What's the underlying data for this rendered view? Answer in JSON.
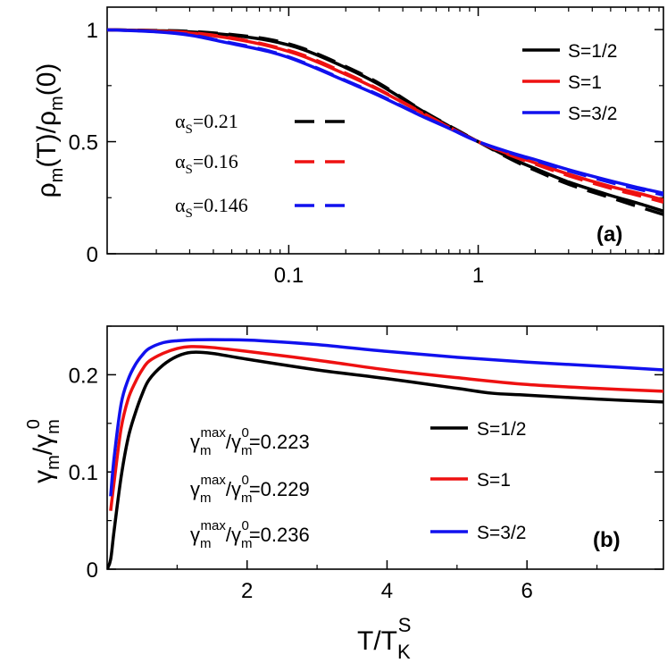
{
  "chart_data": [
    {
      "type": "line",
      "panel_label": "(a)",
      "xscale": "log",
      "xlim": [
        0.011,
        9.5
      ],
      "ylim": [
        0,
        1.1
      ],
      "xticks": [
        {
          "value": 0.1,
          "label": "0.1"
        },
        {
          "value": 1,
          "label": "1"
        }
      ],
      "yticks": [
        {
          "value": 0,
          "label": "0"
        },
        {
          "value": 0.5,
          "label": "0.5"
        },
        {
          "value": 1,
          "label": "1"
        }
      ],
      "ylabel": {
        "main": "ρ",
        "sub1": "m",
        "mid": "(T)/ρ",
        "sub2": "m",
        "end": "(0)"
      },
      "legend_solid": [
        {
          "label": "S=1/2",
          "color": "#000000"
        },
        {
          "label": "S=1",
          "color": "#ee1111"
        },
        {
          "label": "S=3/2",
          "color": "#1111ee"
        }
      ],
      "legend_dashed": [
        {
          "greek": "α",
          "sub": "S",
          "value": "=0.21",
          "color": "#000000"
        },
        {
          "greek": "α",
          "sub": "S",
          "value": "=0.16",
          "color": "#ee1111"
        },
        {
          "greek": "α",
          "sub": "S",
          "value": "=0.146",
          "color": "#1111ee"
        }
      ],
      "series": [
        {
          "name": "S=1/2",
          "style": "solid",
          "color": "#000000",
          "x": [
            0.011,
            0.02,
            0.03,
            0.05,
            0.08,
            0.12,
            0.2,
            0.3,
            0.5,
            0.7,
            1.0,
            1.5,
            2,
            3,
            5,
            7,
            9.5
          ],
          "y": [
            0.999,
            0.995,
            0.99,
            0.975,
            0.95,
            0.91,
            0.83,
            0.755,
            0.64,
            0.57,
            0.5,
            0.425,
            0.38,
            0.32,
            0.26,
            0.225,
            0.19
          ]
        },
        {
          "name": "S=1",
          "style": "solid",
          "color": "#ee1111",
          "x": [
            0.011,
            0.02,
            0.03,
            0.05,
            0.08,
            0.12,
            0.2,
            0.3,
            0.5,
            0.7,
            1.0,
            1.5,
            2,
            3,
            5,
            7,
            9.5
          ],
          "y": [
            0.999,
            0.993,
            0.985,
            0.96,
            0.925,
            0.88,
            0.8,
            0.73,
            0.63,
            0.565,
            0.5,
            0.44,
            0.405,
            0.355,
            0.3,
            0.27,
            0.24
          ]
        },
        {
          "name": "S=3/2",
          "style": "solid",
          "color": "#1111ee",
          "x": [
            0.011,
            0.02,
            0.03,
            0.045,
            0.08,
            0.12,
            0.2,
            0.3,
            0.5,
            0.7,
            1.0,
            1.5,
            2,
            3,
            5,
            7,
            9.5
          ],
          "y": [
            0.999,
            0.99,
            0.975,
            0.945,
            0.9,
            0.85,
            0.77,
            0.705,
            0.615,
            0.56,
            0.5,
            0.45,
            0.42,
            0.375,
            0.325,
            0.295,
            0.27
          ]
        },
        {
          "name": "αS=0.21",
          "style": "dashed",
          "color": "#000000",
          "x": [
            0.011,
            0.02,
            0.03,
            0.05,
            0.08,
            0.12,
            0.2,
            0.3,
            0.5,
            0.7,
            1.0,
            1.5,
            2,
            3,
            5,
            7,
            9.5
          ],
          "y": [
            0.999,
            0.996,
            0.992,
            0.978,
            0.955,
            0.915,
            0.835,
            0.76,
            0.642,
            0.572,
            0.5,
            0.42,
            0.372,
            0.31,
            0.25,
            0.21,
            0.175
          ]
        },
        {
          "name": "αS=0.16",
          "style": "dashed",
          "color": "#ee1111",
          "x": [
            0.011,
            0.02,
            0.03,
            0.05,
            0.08,
            0.12,
            0.2,
            0.3,
            0.5,
            0.7,
            1.0,
            1.5,
            2,
            3,
            5,
            7,
            9.5
          ],
          "y": [
            0.999,
            0.994,
            0.987,
            0.963,
            0.928,
            0.885,
            0.805,
            0.733,
            0.632,
            0.566,
            0.5,
            0.437,
            0.4,
            0.348,
            0.292,
            0.26,
            0.23
          ]
        },
        {
          "name": "αS=0.146",
          "style": "dashed",
          "color": "#1111ee",
          "x": [
            0.011,
            0.02,
            0.03,
            0.045,
            0.08,
            0.12,
            0.2,
            0.3,
            0.5,
            0.7,
            1.0,
            1.5,
            2,
            3,
            5,
            7,
            9.5
          ],
          "y": [
            0.999,
            0.991,
            0.977,
            0.948,
            0.903,
            0.853,
            0.773,
            0.708,
            0.617,
            0.561,
            0.5,
            0.448,
            0.416,
            0.37,
            0.318,
            0.288,
            0.262
          ]
        }
      ]
    },
    {
      "type": "line",
      "panel_label": "(b)",
      "xscale": "linear",
      "xlim": [
        0,
        7.95
      ],
      "ylim": [
        0,
        0.25
      ],
      "xticks": [
        {
          "value": 2,
          "label": "2"
        },
        {
          "value": 4,
          "label": "4"
        },
        {
          "value": 6,
          "label": "6"
        }
      ],
      "yticks": [
        {
          "value": 0,
          "label": "0"
        },
        {
          "value": 0.1,
          "label": "0.1"
        },
        {
          "value": 0.2,
          "label": "0.2"
        }
      ],
      "xlabel": {
        "main": "T/T",
        "sub": "K",
        "sup": "S"
      },
      "ylabel": {
        "main": "γ",
        "sub1": "m",
        "mid": "/γ",
        "sub2": "m",
        "sup2": "0"
      },
      "annotations": [
        {
          "a": "γ",
          "asub": "m",
          "asup": "max",
          "b": "/γ",
          "bsub": "m",
          "bsup": "0",
          "value": "=0.223"
        },
        {
          "a": "γ",
          "asub": "m",
          "asup": "max",
          "b": "/γ",
          "bsub": "m",
          "bsup": "0",
          "value": "=0.229"
        },
        {
          "a": "γ",
          "asub": "m",
          "asup": "max",
          "b": "/γ",
          "bsub": "m",
          "bsup": "0",
          "value": "=0.236"
        }
      ],
      "legend": [
        {
          "label": "S=1/2",
          "color": "#000000"
        },
        {
          "label": "S=1",
          "color": "#ee1111"
        },
        {
          "label": "S=3/2",
          "color": "#1111ee"
        }
      ],
      "series": [
        {
          "name": "S=1/2",
          "color": "#000000",
          "x": [
            0.0,
            0.05,
            0.1,
            0.2,
            0.3,
            0.4,
            0.5,
            0.6,
            0.8,
            1.0,
            1.2,
            1.5,
            2,
            3,
            4,
            5,
            5.5,
            6,
            7,
            7.95
          ],
          "y": [
            0.0,
            0.01,
            0.04,
            0.095,
            0.135,
            0.16,
            0.18,
            0.195,
            0.21,
            0.219,
            0.223,
            0.222,
            0.216,
            0.205,
            0.196,
            0.186,
            0.181,
            0.179,
            0.175,
            0.172
          ]
        },
        {
          "name": "S=1",
          "color": "#ee1111",
          "x": [
            0.05,
            0.1,
            0.2,
            0.3,
            0.4,
            0.5,
            0.6,
            0.8,
            1.0,
            1.2,
            1.5,
            2,
            3,
            4,
            5,
            6,
            7,
            7.95
          ],
          "y": [
            0.06,
            0.09,
            0.145,
            0.175,
            0.192,
            0.205,
            0.214,
            0.222,
            0.227,
            0.229,
            0.228,
            0.224,
            0.215,
            0.205,
            0.197,
            0.19,
            0.186,
            0.183
          ]
        },
        {
          "name": "S=3/2",
          "color": "#1111ee",
          "x": [
            0.05,
            0.1,
            0.2,
            0.3,
            0.4,
            0.5,
            0.6,
            0.8,
            1.0,
            1.3,
            1.7,
            2.2,
            3,
            4,
            5,
            6,
            7,
            7.95
          ],
          "y": [
            0.075,
            0.115,
            0.17,
            0.195,
            0.21,
            0.22,
            0.227,
            0.233,
            0.235,
            0.236,
            0.236,
            0.235,
            0.231,
            0.224,
            0.218,
            0.213,
            0.209,
            0.205
          ]
        }
      ]
    }
  ]
}
